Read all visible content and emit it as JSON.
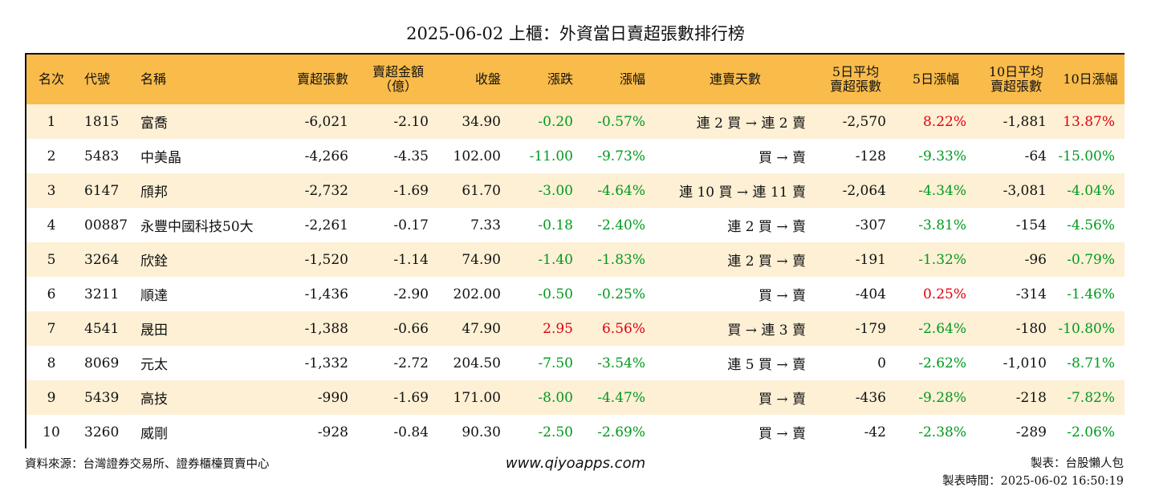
{
  "title": "2025-06-02 上櫃：外資當日賣超張數排行榜",
  "headers": {
    "rank": "名次",
    "code": "代號",
    "name": "名稱",
    "sell_shares": "賣超張數",
    "sell_amount_1": "賣超金額",
    "sell_amount_2": "（億）",
    "close": "收盤",
    "change": "漲跌",
    "pct": "漲幅",
    "streak": "連賣天數",
    "avg5_1": "5日平均",
    "avg5_2": "賣超張數",
    "pct5": "5日漲幅",
    "avg10_1": "10日平均",
    "avg10_2": "賣超張數",
    "pct10": "10日漲幅"
  },
  "colors": {
    "header_bg": "#f9bb4a",
    "row_alt_bg": "#fdf0d5",
    "up": "#e0000f",
    "down": "#009a1e"
  },
  "rows": [
    {
      "rank": "1",
      "code": "1815",
      "name": "富喬",
      "sell_shares": "-6,021",
      "sell_amount": "-2.10",
      "close": "34.90",
      "change": "-0.20",
      "change_dir": "down",
      "pct": "-0.57%",
      "pct_dir": "down",
      "streak": "連 2 買 → 連 2 賣",
      "avg5": "-2,570",
      "pct5": "8.22%",
      "pct5_dir": "up",
      "avg10": "-1,881",
      "pct10": "13.87%",
      "pct10_dir": "up"
    },
    {
      "rank": "2",
      "code": "5483",
      "name": "中美晶",
      "sell_shares": "-4,266",
      "sell_amount": "-4.35",
      "close": "102.00",
      "change": "-11.00",
      "change_dir": "down",
      "pct": "-9.73%",
      "pct_dir": "down",
      "streak": "買 → 賣",
      "avg5": "-128",
      "pct5": "-9.33%",
      "pct5_dir": "down",
      "avg10": "-64",
      "pct10": "-15.00%",
      "pct10_dir": "down"
    },
    {
      "rank": "3",
      "code": "6147",
      "name": "頎邦",
      "sell_shares": "-2,732",
      "sell_amount": "-1.69",
      "close": "61.70",
      "change": "-3.00",
      "change_dir": "down",
      "pct": "-4.64%",
      "pct_dir": "down",
      "streak": "連 10 買 → 連 11 賣",
      "avg5": "-2,064",
      "pct5": "-4.34%",
      "pct5_dir": "down",
      "avg10": "-3,081",
      "pct10": "-4.04%",
      "pct10_dir": "down"
    },
    {
      "rank": "4",
      "code": "00887",
      "name": "永豐中國科技50大",
      "sell_shares": "-2,261",
      "sell_amount": "-0.17",
      "close": "7.33",
      "change": "-0.18",
      "change_dir": "down",
      "pct": "-2.40%",
      "pct_dir": "down",
      "streak": "連 2 買 → 賣",
      "avg5": "-307",
      "pct5": "-3.81%",
      "pct5_dir": "down",
      "avg10": "-154",
      "pct10": "-4.56%",
      "pct10_dir": "down"
    },
    {
      "rank": "5",
      "code": "3264",
      "name": "欣銓",
      "sell_shares": "-1,520",
      "sell_amount": "-1.14",
      "close": "74.90",
      "change": "-1.40",
      "change_dir": "down",
      "pct": "-1.83%",
      "pct_dir": "down",
      "streak": "連 2 買 → 賣",
      "avg5": "-191",
      "pct5": "-1.32%",
      "pct5_dir": "down",
      "avg10": "-96",
      "pct10": "-0.79%",
      "pct10_dir": "down"
    },
    {
      "rank": "6",
      "code": "3211",
      "name": "順達",
      "sell_shares": "-1,436",
      "sell_amount": "-2.90",
      "close": "202.00",
      "change": "-0.50",
      "change_dir": "down",
      "pct": "-0.25%",
      "pct_dir": "down",
      "streak": "買 → 賣",
      "avg5": "-404",
      "pct5": "0.25%",
      "pct5_dir": "up",
      "avg10": "-314",
      "pct10": "-1.46%",
      "pct10_dir": "down"
    },
    {
      "rank": "7",
      "code": "4541",
      "name": "晟田",
      "sell_shares": "-1,388",
      "sell_amount": "-0.66",
      "close": "47.90",
      "change": "2.95",
      "change_dir": "up",
      "pct": "6.56%",
      "pct_dir": "up",
      "streak": "買 → 連 3 賣",
      "avg5": "-179",
      "pct5": "-2.64%",
      "pct5_dir": "down",
      "avg10": "-180",
      "pct10": "-10.80%",
      "pct10_dir": "down"
    },
    {
      "rank": "8",
      "code": "8069",
      "name": "元太",
      "sell_shares": "-1,332",
      "sell_amount": "-2.72",
      "close": "204.50",
      "change": "-7.50",
      "change_dir": "down",
      "pct": "-3.54%",
      "pct_dir": "down",
      "streak": "連 5 買 → 賣",
      "avg5": "0",
      "pct5": "-2.62%",
      "pct5_dir": "down",
      "avg10": "-1,010",
      "pct10": "-8.71%",
      "pct10_dir": "down"
    },
    {
      "rank": "9",
      "code": "5439",
      "name": "高技",
      "sell_shares": "-990",
      "sell_amount": "-1.69",
      "close": "171.00",
      "change": "-8.00",
      "change_dir": "down",
      "pct": "-4.47%",
      "pct_dir": "down",
      "streak": "買 → 賣",
      "avg5": "-436",
      "pct5": "-9.28%",
      "pct5_dir": "down",
      "avg10": "-218",
      "pct10": "-7.82%",
      "pct10_dir": "down"
    },
    {
      "rank": "10",
      "code": "3260",
      "name": "威剛",
      "sell_shares": "-928",
      "sell_amount": "-0.84",
      "close": "90.30",
      "change": "-2.50",
      "change_dir": "down",
      "pct": "-2.69%",
      "pct_dir": "down",
      "streak": "買 → 賣",
      "avg5": "-42",
      "pct5": "-2.38%",
      "pct5_dir": "down",
      "avg10": "-289",
      "pct10": "-2.06%",
      "pct10_dir": "down"
    }
  ],
  "footer": {
    "source": "資料來源：台灣證券交易所、證券櫃檯買賣中心",
    "website": "www.qiyoapps.com",
    "made_by": "製表：台股懶人包",
    "made_time": "製表時間：2025-06-02 16:50:19"
  }
}
